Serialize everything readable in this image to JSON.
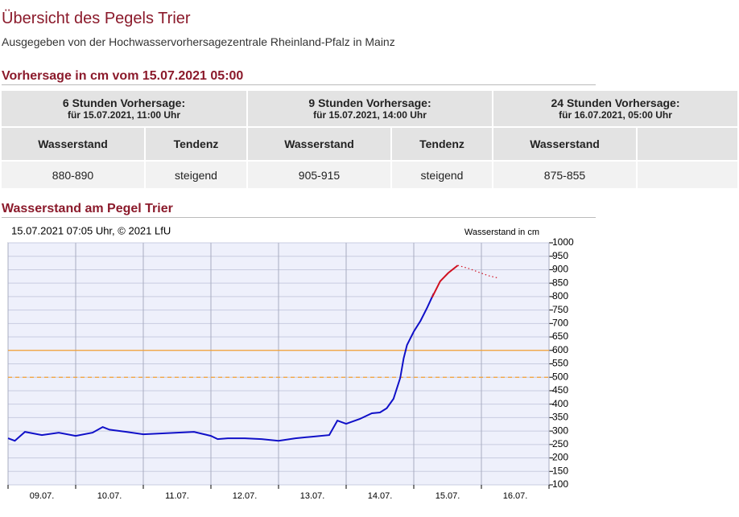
{
  "header": {
    "title": "Übersicht des Pegels Trier",
    "subtitle": "Ausgegeben von der Hochwasservorhersagezentrale Rheinland-Pfalz in Mainz"
  },
  "forecast": {
    "title": "Vorhersage in cm vom 15.07.2021 05:00",
    "groups": [
      {
        "title": "6 Stunden Vorhersage:",
        "subtitle": "für 15.07.2021, 11:00 Uhr"
      },
      {
        "title": "9 Stunden Vorhersage:",
        "subtitle": "für 15.07.2021, 14:00 Uhr"
      },
      {
        "title": "24 Stunden Vorhersage:",
        "subtitle": "für 16.07.2021, 05:00 Uhr"
      }
    ],
    "columns": [
      "Wasserstand",
      "Tendenz",
      "Wasserstand",
      "Tendenz",
      "Wasserstand"
    ],
    "rows": [
      [
        "880-890",
        "steigend",
        "905-915",
        "steigend",
        "875-855"
      ]
    ]
  },
  "section_title": "Wasserstand am Pegel Trier",
  "chart_data": {
    "type": "line",
    "caption": "15.07.2021 07:05 Uhr, © 2021 LfU",
    "y_label": "Wasserstand in cm",
    "xlim": [
      9,
      17
    ],
    "xticks": [
      {
        "value": 9.5,
        "label": "09.07."
      },
      {
        "value": 10.5,
        "label": "10.07."
      },
      {
        "value": 11.5,
        "label": "11.07."
      },
      {
        "value": 12.5,
        "label": "12.07."
      },
      {
        "value": 13.5,
        "label": "13.07."
      },
      {
        "value": 14.5,
        "label": "14.07."
      },
      {
        "value": 15.5,
        "label": "15.07."
      },
      {
        "value": 16.5,
        "label": "16.07."
      }
    ],
    "xgrid": [
      9,
      10,
      11,
      12,
      13,
      14,
      15,
      16,
      17
    ],
    "ylim": [
      100,
      1000
    ],
    "yticks": [
      100,
      150,
      200,
      250,
      300,
      350,
      400,
      450,
      500,
      550,
      600,
      650,
      700,
      750,
      800,
      850,
      900,
      950,
      1000
    ],
    "grid": true,
    "hlines": [
      {
        "value": 600,
        "color": "#f5a030",
        "dashed": false
      },
      {
        "value": 500,
        "color": "#f5a030",
        "dashed": true
      }
    ],
    "series": [
      {
        "color": "#1010c8",
        "dotted": false,
        "x": [
          9.0,
          9.1,
          9.25,
          9.5,
          9.75,
          10.0,
          10.25,
          10.4,
          10.5,
          10.75,
          11.0,
          11.25,
          11.5,
          11.75,
          12.0,
          12.1,
          12.25,
          12.5,
          12.75,
          13.0,
          13.25,
          13.5,
          13.75,
          13.87,
          14.0,
          14.2,
          14.38,
          14.5,
          14.6,
          14.7,
          14.8,
          14.85,
          14.9,
          15.0,
          15.1,
          15.2,
          15.295
        ],
        "values": [
          273,
          264,
          297,
          285,
          294,
          282,
          294,
          315,
          305,
          297,
          288,
          291,
          294,
          297,
          282,
          270,
          273,
          273,
          270,
          264,
          273,
          279,
          285,
          339,
          327,
          345,
          366,
          369,
          385,
          420,
          498,
          570,
          620,
          670,
          710,
          760,
          812
        ]
      },
      {
        "color": "#d01020",
        "dotted": false,
        "x": [
          15.27,
          15.39,
          15.51,
          15.65
        ],
        "values": [
          797,
          857,
          888,
          916
        ]
      },
      {
        "color": "#d01020",
        "dotted": true,
        "x": [
          15.65,
          15.81,
          15.99,
          16.1,
          16.25
        ],
        "values": [
          916,
          905,
          888,
          878,
          869
        ]
      }
    ]
  }
}
